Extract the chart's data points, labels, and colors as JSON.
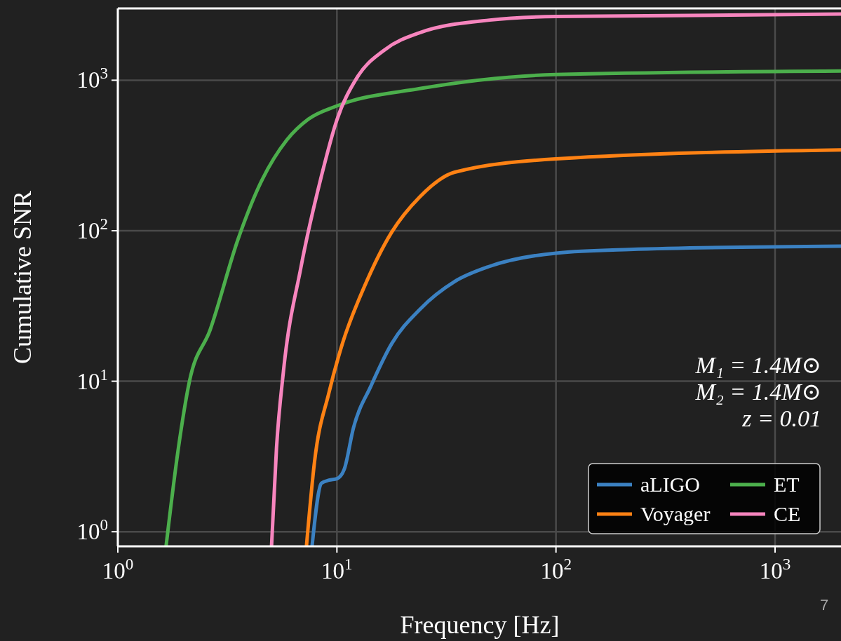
{
  "chart_data": {
    "type": "line",
    "xlabel": "Frequency [Hz]",
    "ylabel": "Cumulative SNR",
    "log": "xy",
    "xlim": [
      1,
      2000
    ],
    "ylim": [
      0.8,
      3000
    ],
    "xticks": [
      {
        "value": 1,
        "label": "10$^{0}$"
      },
      {
        "value": 10,
        "label": "10$^{1}$"
      },
      {
        "value": 100,
        "label": "10$^{2}$"
      },
      {
        "value": 1000,
        "label": "10$^{3}$"
      }
    ],
    "yticks": [
      {
        "value": 1,
        "label": "10$^{0}$"
      },
      {
        "value": 10,
        "label": "10$^{1}$"
      },
      {
        "value": 100,
        "label": "10$^{2}$"
      },
      {
        "value": 1000,
        "label": "10$^{3}$"
      }
    ],
    "grid": true,
    "legend": "bottom right",
    "line_style": "solid",
    "annotations": [
      "M₁ = 1.4M⊙",
      "M₂ = 1.4M⊙",
      "z = 0.01",
      "7"
    ],
    "series": [
      {
        "name": "aLIGO",
        "color": "#3b81c2",
        "x": [
          7.7,
          8.5,
          9.2,
          10,
          10.8,
          11.9,
          14.3,
          17.8,
          23.9,
          34.5,
          49.8,
          100,
          216,
          2000
        ],
        "values": [
          0.8,
          2.1,
          2.2,
          2.25,
          2.6,
          4.9,
          9.3,
          17.8,
          30,
          46,
          58,
          71,
          75,
          79
        ]
      },
      {
        "name": "Voyager",
        "color": "#ff8214",
        "x": [
          7.26,
          7.9,
          9.2,
          10.6,
          13.3,
          17.8,
          23.9,
          34.5,
          100,
          2000
        ],
        "values": [
          0.8,
          2.9,
          8.4,
          17.8,
          42,
          98,
          168,
          245,
          300,
          344
        ]
      },
      {
        "name": "ET",
        "color": "#4caf4c",
        "x": [
          1.66,
          1.89,
          2.12,
          2.64,
          3.54,
          4.4,
          5.9,
          7.4,
          10,
          23.9,
          100,
          2000
        ],
        "values": [
          0.8,
          3.6,
          9.9,
          22,
          88,
          196,
          400,
          550,
          675,
          880,
          1090,
          1150
        ]
      },
      {
        "name": "CE",
        "color": "#f785be",
        "x": [
          5.03,
          5.3,
          5.7,
          6.85,
          8.5,
          10,
          12.3,
          16.5,
          23.9,
          49.8,
          100,
          2000
        ],
        "values": [
          0.8,
          3.6,
          11.6,
          57,
          231,
          545,
          1030,
          1590,
          2070,
          2510,
          2650,
          2750
        ]
      }
    ]
  }
}
